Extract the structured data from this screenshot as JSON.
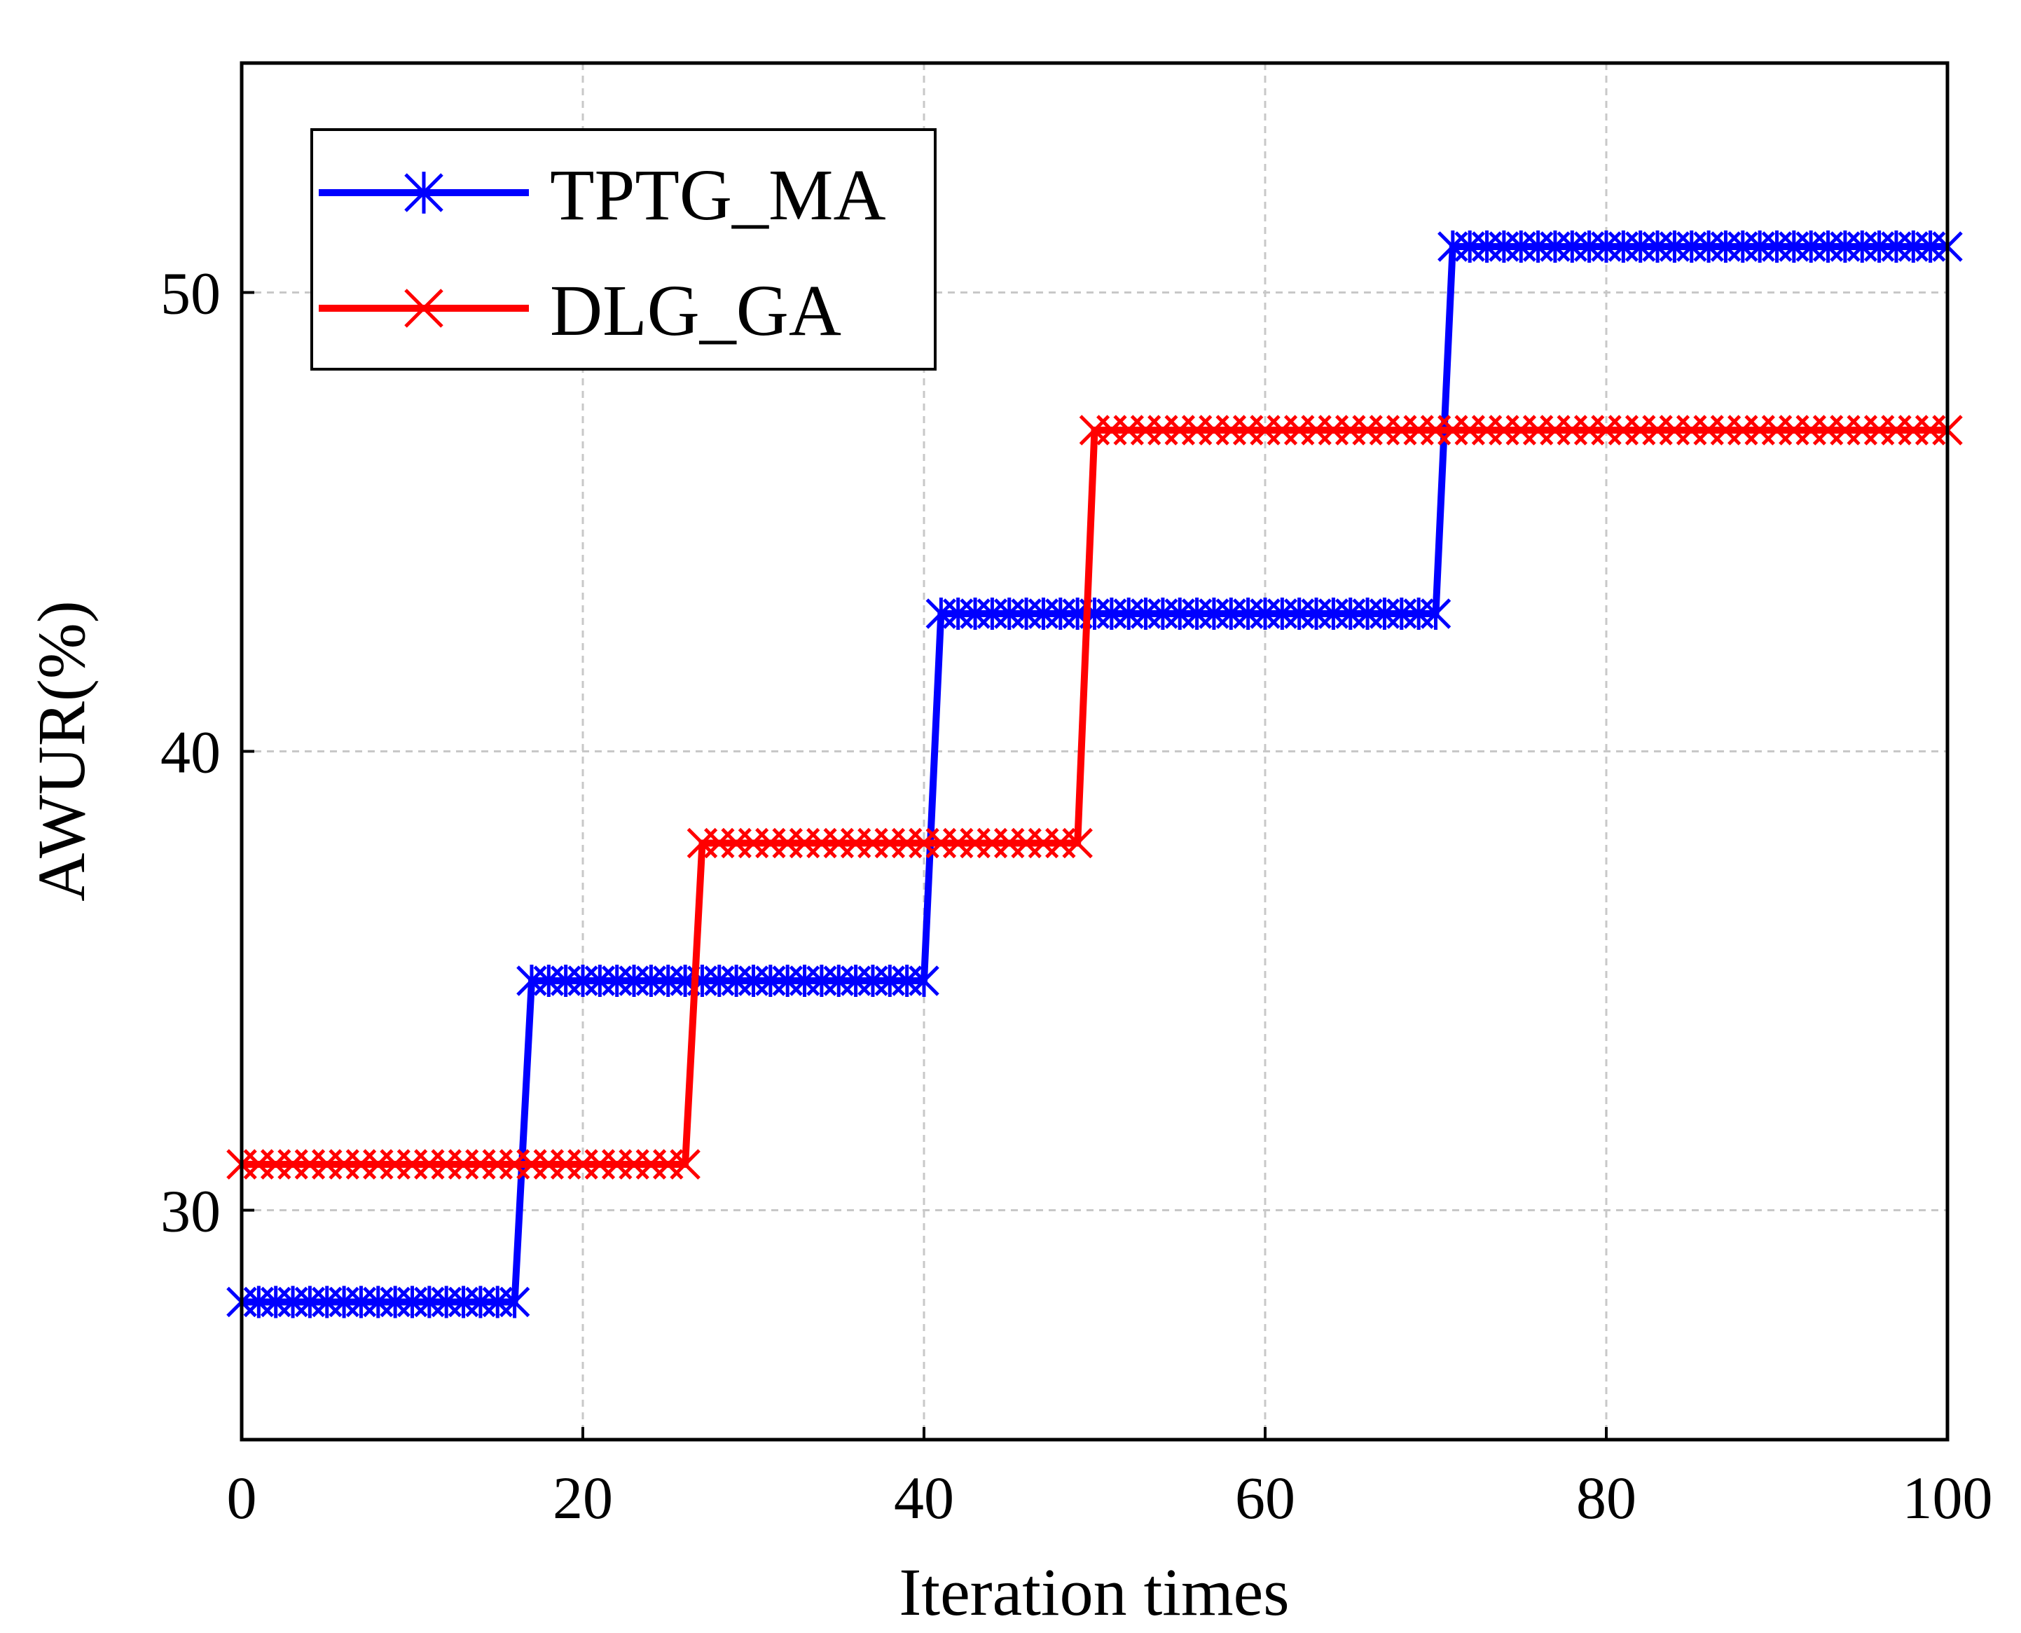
{
  "chart_data": {
    "type": "line",
    "title": "",
    "xlabel": "Iteration times",
    "ylabel": "AWUR(%)",
    "xlim": [
      0,
      100
    ],
    "ylim": [
      25,
      55
    ],
    "xticks": [
      0,
      20,
      40,
      60,
      80,
      100
    ],
    "yticks": [
      30,
      40,
      50
    ],
    "grid": true,
    "legend_position": "top-left",
    "series": [
      {
        "name": "TPTG_MA",
        "color": "#0000ff",
        "marker": "asterisk",
        "steps": [
          {
            "from": 0,
            "to": 16,
            "value": 28
          },
          {
            "from": 17,
            "to": 40,
            "value": 35
          },
          {
            "from": 41,
            "to": 70,
            "value": 43
          },
          {
            "from": 71,
            "to": 100,
            "value": 51
          }
        ]
      },
      {
        "name": "DLG_GA",
        "color": "#ff0000",
        "marker": "x",
        "steps": [
          {
            "from": 0,
            "to": 26,
            "value": 31
          },
          {
            "from": 27,
            "to": 49,
            "value": 38
          },
          {
            "from": 50,
            "to": 100,
            "value": 47
          }
        ]
      }
    ]
  }
}
